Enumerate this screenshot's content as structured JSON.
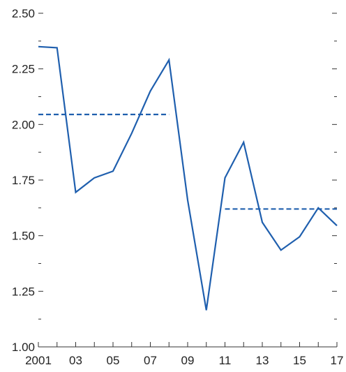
{
  "chart_data": {
    "type": "line",
    "x": [
      2001,
      2002,
      2003,
      2004,
      2005,
      2006,
      2007,
      2008,
      2009,
      2010,
      2011,
      2012,
      2013,
      2014,
      2015,
      2016,
      2017
    ],
    "series": [
      {
        "values": [
          2.35,
          2.345,
          1.695,
          1.76,
          1.79,
          1.96,
          2.15,
          2.29,
          1.66,
          1.165,
          1.76,
          1.92,
          1.56,
          1.435,
          1.495,
          1.625,
          1.545
        ],
        "color": "#1f5fae",
        "style": "solid"
      },
      {
        "x_range": [
          2001,
          2008
        ],
        "value": 2.045,
        "color": "#1f5fae",
        "style": "dashed"
      },
      {
        "x_range": [
          2011,
          2017
        ],
        "value": 1.62,
        "color": "#1f5fae",
        "style": "dashed"
      }
    ],
    "xlim": [
      2001,
      2017
    ],
    "ylim": [
      1.0,
      2.5
    ],
    "x_tick_labels": [
      "2001",
      "03",
      "05",
      "07",
      "09",
      "11",
      "13",
      "15",
      "17"
    ],
    "x_tick_values": [
      2001,
      2003,
      2005,
      2007,
      2009,
      2011,
      2013,
      2015,
      2017
    ],
    "y_tick_labels": [
      "1.00",
      "1.25",
      "1.50",
      "1.75",
      "2.00",
      "2.25",
      "2.50"
    ],
    "y_tick_values": [
      1.0,
      1.25,
      1.5,
      1.75,
      2.0,
      2.25,
      2.5
    ],
    "y_minor_step": 0.125,
    "grid": false,
    "title": "",
    "xlabel": "",
    "ylabel": ""
  }
}
